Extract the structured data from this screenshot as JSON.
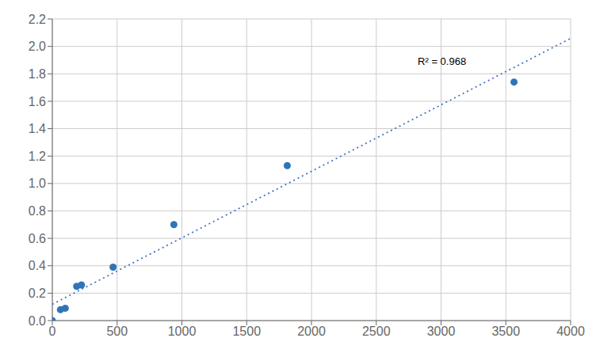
{
  "chart_data": {
    "type": "scatter",
    "series": [
      {
        "type": "scatter",
        "color": "#2E75B6",
        "marker": "circle",
        "x": [
          0,
          63,
          100,
          188,
          225,
          469,
          938,
          1813,
          3563
        ],
        "values": [
          0.0,
          0.08,
          0.09,
          0.25,
          0.26,
          0.39,
          0.7,
          1.13,
          1.74
        ]
      },
      {
        "type": "line",
        "color": "#4472C4",
        "line_style": "dotted",
        "x": [
          0,
          4000
        ],
        "values": [
          0.1191,
          2.0586
        ]
      }
    ],
    "annotations": [
      {
        "text": "R² = 0.968",
        "x": 2820,
        "y": 1.93
      }
    ],
    "xlim": [
      0,
      4000
    ],
    "ylim": [
      0,
      2.2
    ],
    "xticks": [
      0,
      500,
      1000,
      1500,
      2000,
      2500,
      3000,
      3500,
      4000
    ],
    "yticks": [
      {
        "value": 0,
        "label": "0.0"
      },
      0.2,
      0.4,
      0.6,
      0.8,
      {
        "value": 1.0,
        "label": "1.0"
      },
      1.2,
      1.4,
      1.6,
      1.8,
      {
        "value": 2.0,
        "label": "2.0"
      },
      2.2
    ],
    "grid": true
  }
}
